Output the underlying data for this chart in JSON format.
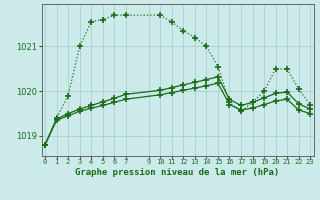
{
  "title": "Graphe pression niveau de la mer (hPa)",
  "bg_color": "#cceaea",
  "grid_color": "#aacfcf",
  "line_color": "#1a6b1a",
  "ylim": [
    1018.55,
    1021.95
  ],
  "yticks": [
    1019,
    1020,
    1021
  ],
  "xticks": [
    0,
    1,
    2,
    3,
    4,
    5,
    6,
    7,
    9,
    10,
    11,
    12,
    13,
    14,
    15,
    16,
    17,
    18,
    19,
    20,
    21,
    22,
    23
  ],
  "series_dotted_x": [
    0,
    1,
    2,
    3,
    4,
    5,
    6,
    7,
    10,
    11,
    12,
    13,
    14,
    15,
    16,
    17,
    18,
    19,
    20,
    21,
    22,
    23
  ],
  "series_dotted_y": [
    1018.8,
    1019.4,
    1019.9,
    1021.0,
    1021.55,
    1021.6,
    1021.7,
    1021.7,
    1021.7,
    1021.55,
    1021.35,
    1021.2,
    1021.0,
    1020.55,
    1019.75,
    1019.55,
    1019.75,
    1020.0,
    1020.5,
    1020.5,
    1020.05,
    1019.7
  ],
  "series_solid1_x": [
    0,
    1,
    2,
    3,
    4,
    5,
    6,
    7,
    10,
    11,
    12,
    13,
    14,
    15,
    16,
    17,
    18,
    19,
    20,
    21,
    22,
    23
  ],
  "series_solid1_y": [
    1018.8,
    1019.35,
    1019.45,
    1019.55,
    1019.62,
    1019.68,
    1019.75,
    1019.82,
    1019.92,
    1019.97,
    1020.02,
    1020.07,
    1020.12,
    1020.18,
    1019.7,
    1019.58,
    1019.62,
    1019.7,
    1019.78,
    1019.82,
    1019.58,
    1019.5
  ],
  "series_solid2_x": [
    0,
    1,
    2,
    3,
    4,
    5,
    6,
    7,
    10,
    11,
    12,
    13,
    14,
    15,
    16,
    17,
    18,
    19,
    20,
    21,
    22,
    23
  ],
  "series_solid2_y": [
    1018.8,
    1019.38,
    1019.5,
    1019.6,
    1019.68,
    1019.76,
    1019.84,
    1019.93,
    1020.02,
    1020.08,
    1020.14,
    1020.2,
    1020.26,
    1020.32,
    1019.82,
    1019.68,
    1019.75,
    1019.85,
    1019.95,
    1019.98,
    1019.72,
    1019.6
  ],
  "marker": "+",
  "markersize": 4,
  "linewidth": 0.9,
  "xlabel_fontsize": 6.5,
  "xtick_fontsize": 5.0,
  "ytick_fontsize": 6.0
}
